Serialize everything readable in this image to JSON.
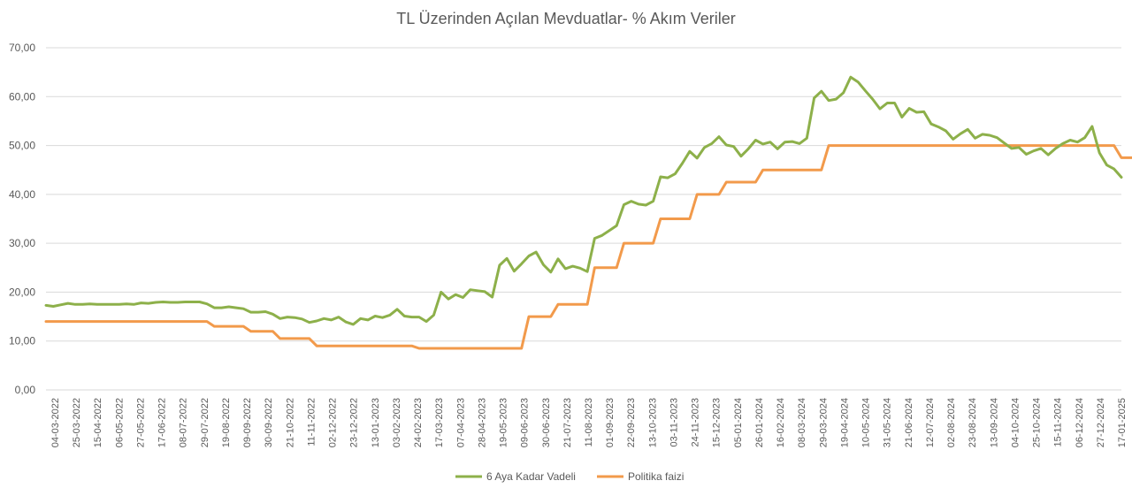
{
  "chart_data": {
    "type": "line",
    "title": "TL Üzerinden Açılan Mevduatlar- % Akım Veriler",
    "xlabel": "",
    "ylabel": "",
    "ylim": [
      0,
      70
    ],
    "yticks": [
      "0,00",
      "10,00",
      "20,00",
      "30,00",
      "40,00",
      "50,00",
      "60,00",
      "70,00"
    ],
    "grid": true,
    "legend_position": "bottom",
    "x_tick_labels": [
      "04-03-2022",
      "25-03-2022",
      "15-04-2022",
      "06-05-2022",
      "27-05-2022",
      "17-06-2022",
      "08-07-2022",
      "29-07-2022",
      "19-08-2022",
      "09-09-2022",
      "30-09-2022",
      "21-10-2022",
      "11-11-2022",
      "02-12-2022",
      "23-12-2022",
      "13-01-2023",
      "03-02-2023",
      "24-02-2023",
      "17-03-2023",
      "07-04-2023",
      "28-04-2023",
      "19-05-2023",
      "09-06-2023",
      "30-06-2023",
      "21-07-2023",
      "11-08-2023",
      "01-09-2023",
      "22-09-2023",
      "13-10-2023",
      "03-11-2023",
      "24-11-2023",
      "15-12-2023",
      "05-01-2024",
      "26-01-2024",
      "16-02-2024",
      "08-03-2024",
      "29-03-2024",
      "19-04-2024",
      "10-05-2024",
      "31-05-2024",
      "21-06-2024",
      "12-07-2024",
      "02-08-2024",
      "23-08-2024",
      "13-09-2024",
      "04-10-2024",
      "25-10-2024",
      "15-11-2024",
      "06-12-2024",
      "27-12-2024",
      "17-01-2025"
    ],
    "series": [
      {
        "name": "6 Aya Kadar Vadeli",
        "color": "#8db04a",
        "values": [
          17.3,
          17.1,
          17.4,
          17.7,
          17.5,
          17.5,
          17.6,
          17.5,
          17.5,
          17.5,
          17.5,
          17.6,
          17.5,
          17.8,
          17.7,
          17.9,
          18.0,
          17.9,
          17.9,
          18.0,
          18.0,
          18.0,
          17.6,
          16.8,
          16.8,
          17.0,
          16.8,
          16.6,
          15.9,
          15.9,
          16.0,
          15.5,
          14.6,
          14.9,
          14.8,
          14.5,
          13.8,
          14.1,
          14.6,
          14.3,
          14.9,
          13.9,
          13.4,
          14.6,
          14.3,
          15.1,
          14.8,
          15.3,
          16.5,
          15.1,
          14.9,
          14.9,
          14.0,
          15.3,
          20.0,
          18.6,
          19.5,
          18.9,
          20.5,
          20.3,
          20.1,
          19.0,
          25.5,
          26.9,
          24.3,
          25.8,
          27.4,
          28.2,
          25.6,
          24.1,
          26.8,
          24.8,
          25.3,
          24.9,
          24.2,
          31.0,
          31.6,
          32.6,
          33.6,
          37.9,
          38.6,
          38.0,
          37.8,
          38.6,
          43.6,
          43.4,
          44.2,
          46.4,
          48.8,
          47.4,
          49.6,
          50.4,
          51.8,
          50.1,
          49.8,
          47.8,
          49.3,
          51.1,
          50.3,
          50.7,
          49.3,
          50.7,
          50.8,
          50.4,
          51.5,
          59.7,
          61.1,
          59.2,
          59.5,
          60.8,
          64.0,
          63.0,
          61.2,
          59.5,
          57.5,
          58.7,
          58.7,
          55.8,
          57.6,
          56.8,
          56.9,
          54.4,
          53.8,
          53.0,
          51.3,
          52.4,
          53.3,
          51.5,
          52.3,
          52.1,
          51.6,
          50.5,
          49.4,
          49.6,
          48.2,
          48.9,
          49.4,
          48.1,
          49.4,
          50.4,
          51.1,
          50.7,
          51.6,
          53.9,
          48.5,
          46.0,
          45.2,
          43.5
        ]
      },
      {
        "name": "Politika faizi",
        "color": "#f29a4b",
        "values": [
          14,
          14,
          14,
          14,
          14,
          14,
          14,
          14,
          14,
          14,
          14,
          14,
          14,
          14,
          14,
          14,
          14,
          14,
          14,
          14,
          14,
          14,
          14,
          13,
          13,
          13,
          13,
          13,
          12,
          12,
          12,
          12,
          10.5,
          10.5,
          10.5,
          10.5,
          10.5,
          9,
          9,
          9,
          9,
          9,
          9,
          9,
          9,
          9,
          9,
          9,
          9,
          9,
          9,
          8.5,
          8.5,
          8.5,
          8.5,
          8.5,
          8.5,
          8.5,
          8.5,
          8.5,
          8.5,
          8.5,
          8.5,
          8.5,
          8.5,
          8.5,
          15,
          15,
          15,
          15,
          17.5,
          17.5,
          17.5,
          17.5,
          17.5,
          25,
          25,
          25,
          25,
          30,
          30,
          30,
          30,
          30,
          35,
          35,
          35,
          35,
          35,
          40,
          40,
          40,
          40,
          42.5,
          42.5,
          42.5,
          42.5,
          42.5,
          45,
          45,
          45,
          45,
          45,
          45,
          45,
          45,
          45,
          50,
          50,
          50,
          50,
          50,
          50,
          50,
          50,
          50,
          50,
          50,
          50,
          50,
          50,
          50,
          50,
          50,
          50,
          50,
          50,
          50,
          50,
          50,
          50,
          50,
          50,
          50,
          50,
          50,
          50,
          50,
          50,
          50,
          50,
          50,
          50,
          50,
          50,
          50,
          50,
          47.5,
          47.5,
          47.5,
          47.5,
          47.5
        ]
      }
    ]
  }
}
